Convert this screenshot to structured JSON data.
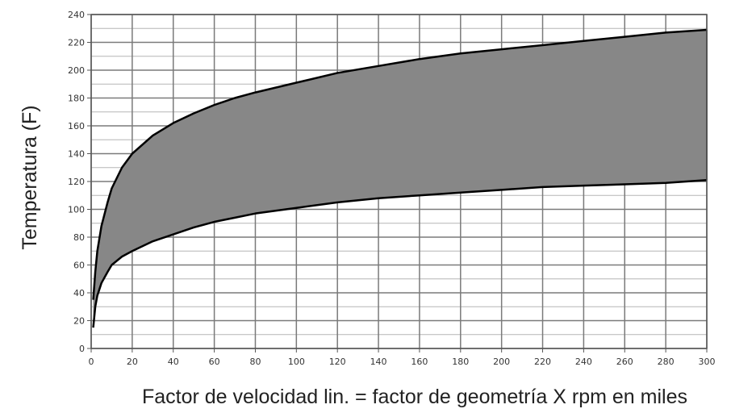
{
  "chart_data": {
    "type": "area",
    "title": "",
    "xlabel": "Factor de velocidad lin. = factor de geometría X rpm en miles",
    "ylabel": "Temperatura (F)",
    "xlim": [
      0,
      300
    ],
    "ylim": [
      0,
      240
    ],
    "x_ticks": [
      "0",
      "20",
      "40",
      "60",
      "80",
      "100",
      "120",
      "140",
      "160",
      "180",
      "200",
      "220",
      "240",
      "260",
      "280",
      "300"
    ],
    "y_ticks": [
      "0",
      "20",
      "40",
      "60",
      "80",
      "100",
      "120",
      "140",
      "160",
      "180",
      "200",
      "220",
      "240"
    ],
    "grid": true,
    "colors": {
      "fill": "#878787",
      "line": "#000000",
      "grid": "#7a7a7a",
      "minor_grid": "#b5b5b5"
    },
    "upper_curve": {
      "x": [
        1,
        2,
        3,
        5,
        8,
        10,
        15,
        20,
        30,
        40,
        50,
        60,
        70,
        80,
        100,
        120,
        140,
        160,
        180,
        200,
        220,
        240,
        260,
        280,
        300
      ],
      "y": [
        35,
        55,
        70,
        88,
        105,
        115,
        130,
        140,
        153,
        162,
        169,
        175,
        180,
        184,
        191,
        198,
        203,
        208,
        212,
        215,
        218,
        221,
        224,
        227,
        229
      ]
    },
    "lower_curve": {
      "x": [
        1,
        2,
        3,
        5,
        8,
        10,
        15,
        20,
        30,
        40,
        50,
        60,
        70,
        80,
        100,
        120,
        140,
        160,
        180,
        200,
        220,
        240,
        260,
        280,
        300
      ],
      "y": [
        15,
        30,
        38,
        47,
        55,
        60,
        66,
        70,
        77,
        82,
        87,
        91,
        94,
        97,
        101,
        105,
        108,
        110,
        112,
        114,
        116,
        117,
        118,
        119,
        121
      ]
    }
  }
}
